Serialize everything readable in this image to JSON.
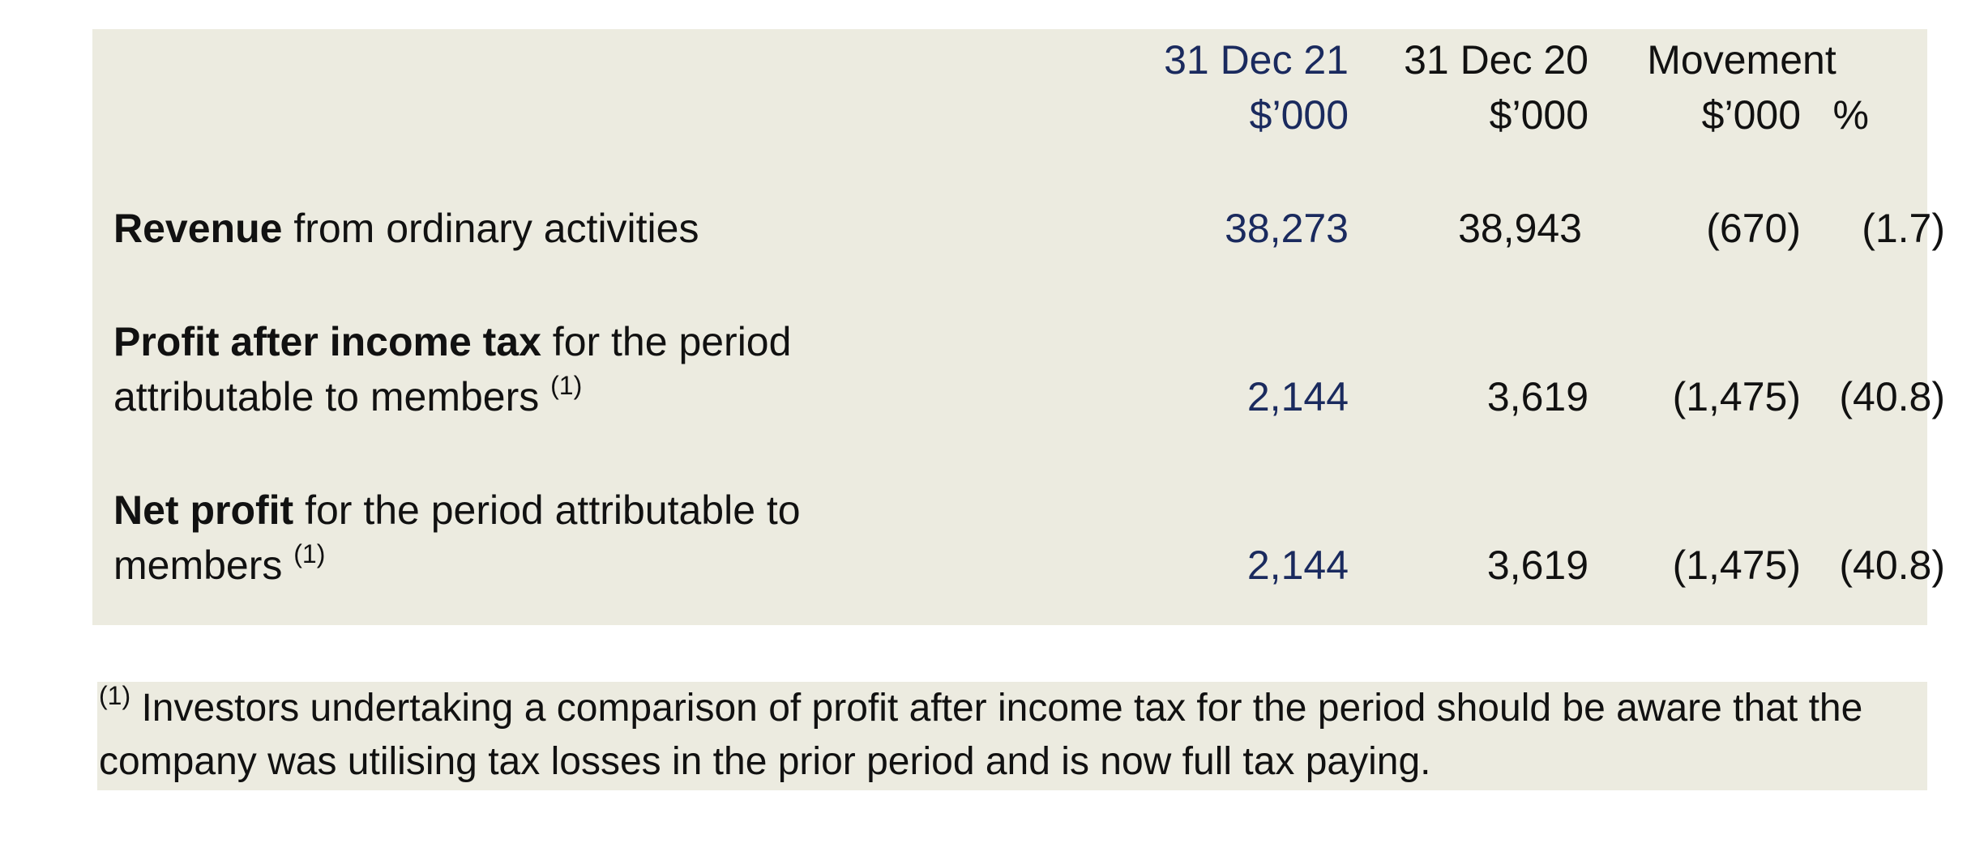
{
  "table": {
    "columns": {
      "current": {
        "line1": "31 Dec 21",
        "line2": "$’000"
      },
      "prior": {
        "line1": "31 Dec 20",
        "line2": "$’000"
      },
      "movement": {
        "line1": "Movement",
        "amount": "$’000",
        "percent": "%"
      }
    },
    "rows": [
      {
        "label_bold": "Revenue",
        "label_rest": " from ordinary activities",
        "label_line2": "",
        "footnote_ref": "",
        "current": "38,273",
        "prior": "38,943",
        "movement": "(670)",
        "percent": "(1.7)"
      },
      {
        "label_bold": "Profit after income tax",
        "label_rest": " for the period",
        "label_line2": "attributable to members ",
        "footnote_ref": "(1)",
        "current": "2,144",
        "prior": "3,619",
        "movement": "(1,475)",
        "percent": "(40.8)"
      },
      {
        "label_bold": "Net profit",
        "label_rest": " for the period attributable to",
        "label_line2": "members ",
        "footnote_ref": "(1)",
        "current": "2,144",
        "prior": "3,619",
        "movement": "(1,475)",
        "percent": "(40.8)"
      }
    ]
  },
  "footnote": {
    "marker": "(1)",
    "text": " Investors undertaking a comparison of profit after income tax for the period should be aware that the company was utilising tax losses in the prior period and is now full tax paying."
  },
  "colors": {
    "panel_background": "#ecebe0",
    "current_period_text": "#1a2a5e",
    "text": "#111111"
  }
}
